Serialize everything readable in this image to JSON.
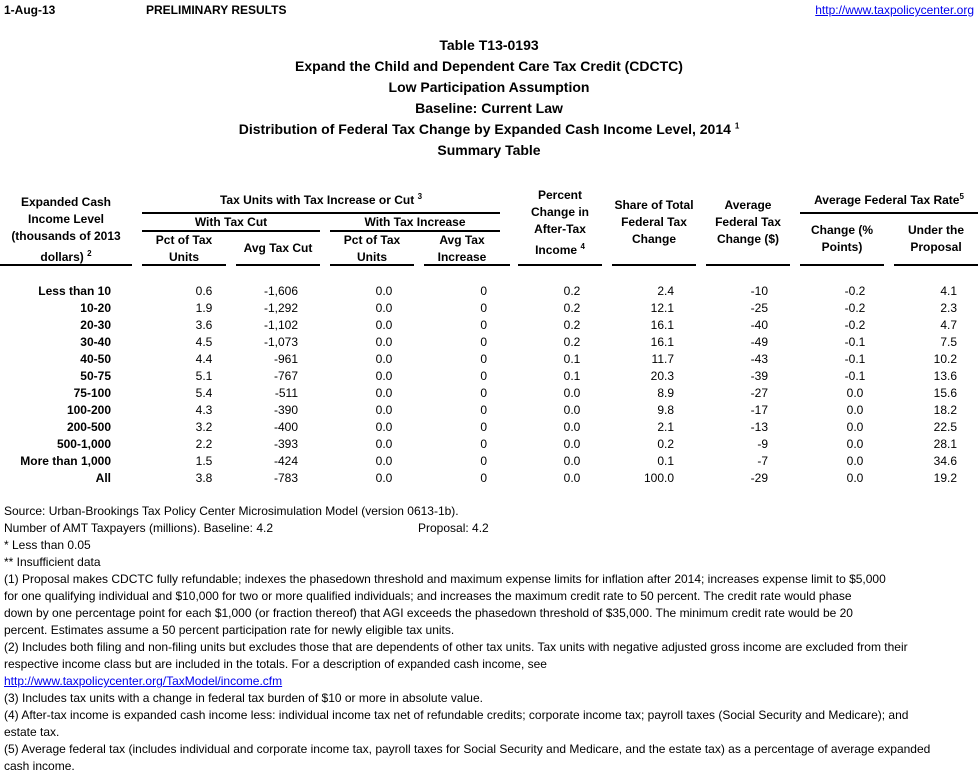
{
  "header": {
    "date": "1-Aug-13",
    "status": "PRELIMINARY RESULTS",
    "url": "http://www.taxpolicycenter.org"
  },
  "titles": [
    "Table T13-0193",
    "Expand the Child and Dependent Care Tax Credit (CDCTC)",
    "Low Participation Assumption",
    "Baseline: Current Law",
    "Distribution of Federal Tax Change by Expanded Cash Income Level, 2014",
    "Summary Table"
  ],
  "title_footnote": "1",
  "columns": {
    "income": "Expanded Cash Income Level (thousands of 2013 dollars)",
    "income_fn": "2",
    "tax_units": "Tax Units with Tax Increase or Cut",
    "tax_units_fn": "3",
    "with_cut": "With Tax Cut",
    "with_increase": "With Tax Increase",
    "pct_units_cut": "Pct of Tax Units",
    "avg_cut": "Avg Tax Cut",
    "pct_units_inc": "Pct of Tax Units",
    "avg_inc": "Avg Tax Increase",
    "pct_change": "Percent Change in After-Tax Income",
    "pct_change_fn": "4",
    "share": "Share of Total Federal Tax Change",
    "avg_change": "Average Federal Tax Change ($)",
    "avg_rate": "Average Federal Tax Rate",
    "avg_rate_fn": "5",
    "rate_change": "Change (% Points)",
    "rate_proposal": "Under the Proposal"
  },
  "rows": [
    [
      "Less than 10",
      "0.6",
      "-1,606",
      "0.0",
      "0",
      "0.2",
      "2.4",
      "-10",
      "-0.2",
      "4.1"
    ],
    [
      "10-20",
      "1.9",
      "-1,292",
      "0.0",
      "0",
      "0.2",
      "12.1",
      "-25",
      "-0.2",
      "2.3"
    ],
    [
      "20-30",
      "3.6",
      "-1,102",
      "0.0",
      "0",
      "0.2",
      "16.1",
      "-40",
      "-0.2",
      "4.7"
    ],
    [
      "30-40",
      "4.5",
      "-1,073",
      "0.0",
      "0",
      "0.2",
      "16.1",
      "-49",
      "-0.1",
      "7.5"
    ],
    [
      "40-50",
      "4.4",
      "-961",
      "0.0",
      "0",
      "0.1",
      "11.7",
      "-43",
      "-0.1",
      "10.2"
    ],
    [
      "50-75",
      "5.1",
      "-767",
      "0.0",
      "0",
      "0.1",
      "20.3",
      "-39",
      "-0.1",
      "13.6"
    ],
    [
      "75-100",
      "5.4",
      "-511",
      "0.0",
      "0",
      "0.0",
      "8.9",
      "-27",
      "0.0",
      "15.6"
    ],
    [
      "100-200",
      "4.3",
      "-390",
      "0.0",
      "0",
      "0.0",
      "9.8",
      "-17",
      "0.0",
      "18.2"
    ],
    [
      "200-500",
      "3.2",
      "-400",
      "0.0",
      "0",
      "0.0",
      "2.1",
      "-13",
      "0.0",
      "22.5"
    ],
    [
      "500-1,000",
      "2.2",
      "-393",
      "0.0",
      "0",
      "0.0",
      "0.2",
      "-9",
      "0.0",
      "28.1"
    ],
    [
      "More than 1,000",
      "1.5",
      "-424",
      "0.0",
      "0",
      "0.0",
      "0.1",
      "-7",
      "0.0",
      "34.6"
    ],
    [
      "All",
      "3.8",
      "-783",
      "0.0",
      "0",
      "0.0",
      "100.0",
      "-29",
      "0.0",
      "19.2"
    ]
  ],
  "notes": {
    "source": "Source: Urban-Brookings Tax Policy Center Microsimulation Model (version 0613-1b).",
    "amt": "Number of AMT Taxpayers (millions).  Baseline: 4.2",
    "amt_proposal": "Proposal: 4.2",
    "lines": [
      "* Less than 0.05",
      "** Insufficient data",
      "(1) Proposal makes CDCTC fully refundable; indexes the phasedown threshold and maximum expense limits for inflation after 2014; increases expense limit to $5,000",
      "for one qualifying individual and $10,000 for two or more qualified individuals; and increases the maximum credit rate to 50 percent. The credit rate would phase",
      "down by one percentage point for each $1,000 (or fraction thereof) that AGI exceeds the phasedown threshold of $35,000.  The minimum credit rate would be 20",
      " percent.  Estimates assume a 50 percent participation rate for newly eligible tax units.",
      "(2) Includes both filing and non-filing units but excludes those that are dependents of other tax units. Tax units with negative adjusted gross income are excluded from their",
      "respective income class but are included in the totals. For a description of expanded cash income, see"
    ],
    "link": "http://www.taxpolicycenter.org/TaxModel/income.cfm",
    "lines2": [
      "(3) Includes tax units with a change in federal tax burden of $10 or more in absolute value.",
      "(4) After-tax income is expanded cash income less: individual income tax net of refundable credits; corporate income tax; payroll taxes (Social Security and Medicare); and",
      "estate tax.",
      "(5) Average federal tax (includes individual and corporate income tax, payroll taxes for Social Security and Medicare, and the estate tax) as a percentage of average expanded",
      "cash income."
    ]
  }
}
